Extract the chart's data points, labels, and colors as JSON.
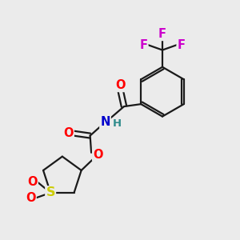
{
  "bg_color": "#ebebeb",
  "bond_color": "#1a1a1a",
  "bond_lw": 1.6,
  "atom_colors": {
    "O": "#ff0000",
    "N": "#0000cc",
    "S": "#cccc00",
    "F": "#cc00cc",
    "H": "#2e8b8b",
    "C": "#1a1a1a"
  },
  "fs": 10.5
}
